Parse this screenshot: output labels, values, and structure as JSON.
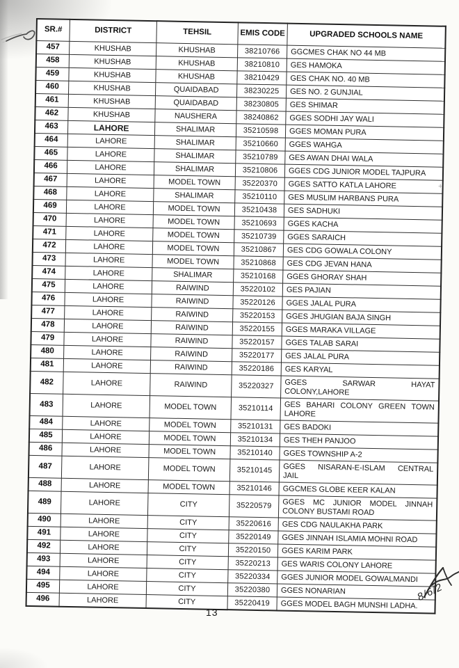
{
  "page": {
    "number": "13",
    "handwritten_date": "8/6/2",
    "artifact_plus": "+"
  },
  "table": {
    "headers": [
      "SR.#",
      "DISTRICT",
      "TEHSIL",
      "EMIS CODE",
      "UPGRADED SCHOOLS NAME"
    ],
    "rows": [
      {
        "sr": "457",
        "district": "KHUSHAB",
        "tehsil": "KHUSHAB",
        "emis": "38210766",
        "name": "GGCMES CHAK NO 44 MB"
      },
      {
        "sr": "458",
        "district": "KHUSHAB",
        "tehsil": "KHUSHAB",
        "emis": "38210810",
        "name": "GES HAMOKA"
      },
      {
        "sr": "459",
        "district": "KHUSHAB",
        "tehsil": "KHUSHAB",
        "emis": "38210429",
        "name": "GES CHAK NO. 40 MB"
      },
      {
        "sr": "460",
        "district": "KHUSHAB",
        "tehsil": "QUAIDABAD",
        "emis": "38230225",
        "name": "GES NO. 2 GUNJIAL"
      },
      {
        "sr": "461",
        "district": "KHUSHAB",
        "tehsil": "QUAIDABAD",
        "emis": "38230805",
        "name": "GES SHIMAR"
      },
      {
        "sr": "462",
        "district": "KHUSHAB",
        "tehsil": "NAUSHERA",
        "emis": "38240862",
        "name": "GGES SODHI JAY WALI"
      },
      {
        "sr": "463",
        "district": "LAHORE",
        "tehsil": "SHALIMAR",
        "emis": "35210598",
        "name": "GGES MOMAN PURA",
        "district_bold": true
      },
      {
        "sr": "464",
        "district": "LAHORE",
        "tehsil": "SHALIMAR",
        "emis": "35210660",
        "name": "GGES WAHGA"
      },
      {
        "sr": "465",
        "district": "LAHORE",
        "tehsil": "SHALIMAR",
        "emis": "35210789",
        "name": "GES AWAN DHAI WALA"
      },
      {
        "sr": "466",
        "district": "LAHORE",
        "tehsil": "SHALIMAR",
        "emis": "35210806",
        "name": "GGES CDG JUNIOR MODEL TAJPURA"
      },
      {
        "sr": "467",
        "district": "LAHORE",
        "tehsil": "MODEL TOWN",
        "emis": "35220370",
        "name": "GGES SATTO KATLA LAHORE"
      },
      {
        "sr": "468",
        "district": "LAHORE",
        "tehsil": "SHALIMAR",
        "emis": "35210110",
        "name": "GES MUSLIM HARBANS PURA"
      },
      {
        "sr": "469",
        "district": "LAHORE",
        "tehsil": "MODEL TOWN",
        "emis": "35210438",
        "name": "GES SADHUKI"
      },
      {
        "sr": "470",
        "district": "LAHORE",
        "tehsil": "MODEL TOWN",
        "emis": "35210693",
        "name": "GGES KACHA"
      },
      {
        "sr": "471",
        "district": "LAHORE",
        "tehsil": "MODEL TOWN",
        "emis": "35210739",
        "name": "GGES SARAICH"
      },
      {
        "sr": "472",
        "district": "LAHORE",
        "tehsil": "MODEL TOWN",
        "emis": "35210867",
        "name": "GES CDG GOWALA COLONY"
      },
      {
        "sr": "473",
        "district": "LAHORE",
        "tehsil": "MODEL TOWN",
        "emis": "35210868",
        "name": "GES CDG JEVAN HANA"
      },
      {
        "sr": "474",
        "district": "LAHORE",
        "tehsil": "SHALIMAR",
        "emis": "35210168",
        "name": "GGES GHORAY SHAH"
      },
      {
        "sr": "475",
        "district": "LAHORE",
        "tehsil": "RAIWIND",
        "emis": "35220102",
        "name": "GES PAJIAN"
      },
      {
        "sr": "476",
        "district": "LAHORE",
        "tehsil": "RAIWIND",
        "emis": "35220126",
        "name": "GGES JALAL PURA"
      },
      {
        "sr": "477",
        "district": "LAHORE",
        "tehsil": "RAIWIND",
        "emis": "35220153",
        "name": "GGES JHUGIAN BAJA SINGH"
      },
      {
        "sr": "478",
        "district": "LAHORE",
        "tehsil": "RAIWIND",
        "emis": "35220155",
        "name": "GGES MARAKA VILLAGE"
      },
      {
        "sr": "479",
        "district": "LAHORE",
        "tehsil": "RAIWIND",
        "emis": "35220157",
        "name": "GGES TALAB SARAI"
      },
      {
        "sr": "480",
        "district": "LAHORE",
        "tehsil": "RAIWIND",
        "emis": "35220177",
        "name": "GES JALAL PURA"
      },
      {
        "sr": "481",
        "district": "LAHORE",
        "tehsil": "RAIWIND",
        "emis": "35220186",
        "name": "GES KARYAL"
      },
      {
        "sr": "482",
        "district": "LAHORE",
        "tehsil": "RAIWIND",
        "emis": "35220327",
        "name": "GGES SARWAR HAYAT\nCOLONY,LAHORE",
        "wrap": "spread"
      },
      {
        "sr": "483",
        "district": "LAHORE",
        "tehsil": "MODEL TOWN",
        "emis": "35210114",
        "name": "GES BAHARI COLONY GREEN TOWN\nLAHORE",
        "wrap": "spread"
      },
      {
        "sr": "484",
        "district": "LAHORE",
        "tehsil": "MODEL TOWN",
        "emis": "35210131",
        "name": "GES BADOKI"
      },
      {
        "sr": "485",
        "district": "LAHORE",
        "tehsil": "MODEL TOWN",
        "emis": "35210134",
        "name": "GES THEH PANJOO"
      },
      {
        "sr": "486",
        "district": "LAHORE",
        "tehsil": "MODEL TOWN",
        "emis": "35210140",
        "name": "GGES TOWNSHIP A-2"
      },
      {
        "sr": "487",
        "district": "LAHORE",
        "tehsil": "MODEL TOWN",
        "emis": "35210145",
        "name": "GGES NISARAN-E-ISLAM CENTRAL\nJAIL",
        "wrap": "spread"
      },
      {
        "sr": "488",
        "district": "LAHORE",
        "tehsil": "MODEL TOWN",
        "emis": "35210146",
        "name": "GGCMES GLOBE KEER KALAN"
      },
      {
        "sr": "489",
        "district": "LAHORE",
        "tehsil": "CITY",
        "emis": "35220579",
        "name": "GGES MC JUNIOR MODEL JINNAH\nCOLONY BUSTAMI ROAD",
        "wrap": "spread"
      },
      {
        "sr": "490",
        "district": "LAHORE",
        "tehsil": "CITY",
        "emis": "35220616",
        "name": "GES CDG NAULAKHA PARK"
      },
      {
        "sr": "491",
        "district": "LAHORE",
        "tehsil": "CITY",
        "emis": "35220149",
        "name": "GGES JINNAH ISLAMIA MOHNI ROAD"
      },
      {
        "sr": "492",
        "district": "LAHORE",
        "tehsil": "CITY",
        "emis": "35220150",
        "name": "GGES KARIM PARK"
      },
      {
        "sr": "493",
        "district": "LAHORE",
        "tehsil": "CITY",
        "emis": "35220213",
        "name": "GES WARIS COLONY LAHORE"
      },
      {
        "sr": "494",
        "district": "LAHORE",
        "tehsil": "CITY",
        "emis": "35220334",
        "name": "GGES JUNIOR MODEL GOWALMANDI"
      },
      {
        "sr": "495",
        "district": "LAHORE",
        "tehsil": "CITY",
        "emis": "35220380",
        "name": "GGES NONARIAN"
      },
      {
        "sr": "496",
        "district": "LAHORE",
        "tehsil": "CITY",
        "emis": "35220419",
        "name": "GGES MODEL BAGH MUNSHI LADHA."
      }
    ]
  }
}
